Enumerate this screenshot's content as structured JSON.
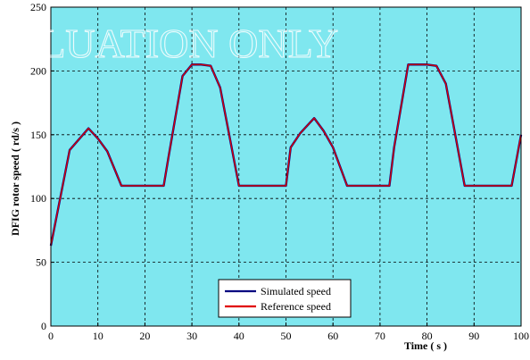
{
  "watermark": "EVALUATION ONLY",
  "chart_data": {
    "type": "line",
    "xlabel": "Time ( s )",
    "ylabel": "DFIG rotor speed ( rd/s )",
    "xlim": [
      0,
      100
    ],
    "ylim": [
      0,
      250
    ],
    "xticks": [
      0,
      10,
      20,
      30,
      40,
      50,
      60,
      70,
      80,
      90,
      100
    ],
    "yticks": [
      0,
      50,
      100,
      150,
      200,
      250
    ],
    "grid": true,
    "legend_position": "bottom-center",
    "background_color": "#7fe7ef",
    "series": [
      {
        "name": "Simulated speed",
        "color": "#000080",
        "x": [
          0,
          4,
          8,
          10,
          12,
          15,
          24,
          25,
          28,
          30,
          32,
          34,
          36,
          40,
          41,
          50,
          51,
          53,
          56,
          58,
          60,
          63,
          72,
          73,
          76,
          78,
          80,
          82,
          84,
          88,
          89,
          98,
          100
        ],
        "y": [
          63,
          138,
          155,
          147,
          137,
          110,
          110,
          132,
          196,
          205,
          205,
          204,
          187,
          110,
          110,
          110,
          140,
          151,
          163,
          153,
          140,
          110,
          110,
          140,
          205,
          205,
          205,
          204,
          190,
          110,
          110,
          110,
          150
        ]
      },
      {
        "name": "Reference speed",
        "color": "#e00000",
        "x": [
          0,
          4,
          8,
          10,
          12,
          15,
          24,
          25,
          28,
          30,
          32,
          34,
          36,
          40,
          41,
          50,
          51,
          53,
          56,
          58,
          60,
          63,
          72,
          73,
          76,
          78,
          80,
          82,
          84,
          88,
          89,
          98,
          100
        ],
        "y": [
          63,
          138,
          155,
          147,
          137,
          110,
          110,
          132,
          196,
          205,
          205,
          204,
          187,
          110,
          110,
          110,
          140,
          151,
          163,
          153,
          140,
          110,
          110,
          140,
          205,
          205,
          205,
          204,
          190,
          110,
          110,
          110,
          150
        ]
      }
    ]
  }
}
